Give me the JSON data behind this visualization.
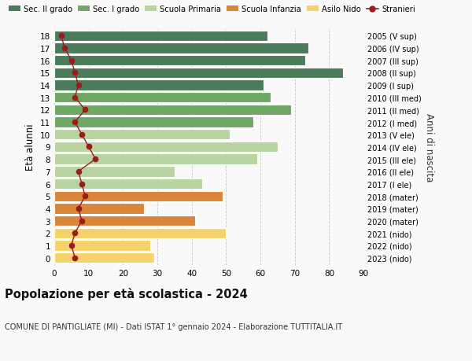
{
  "ages": [
    18,
    17,
    16,
    15,
    14,
    13,
    12,
    11,
    10,
    9,
    8,
    7,
    6,
    5,
    4,
    3,
    2,
    1,
    0
  ],
  "years": [
    "2005 (V sup)",
    "2006 (IV sup)",
    "2007 (III sup)",
    "2008 (II sup)",
    "2009 (I sup)",
    "2010 (III med)",
    "2011 (II med)",
    "2012 (I med)",
    "2013 (V ele)",
    "2014 (IV ele)",
    "2015 (III ele)",
    "2016 (II ele)",
    "2017 (I ele)",
    "2018 (mater)",
    "2019 (mater)",
    "2020 (mater)",
    "2021 (nido)",
    "2022 (nido)",
    "2023 (nido)"
  ],
  "bar_values": [
    62,
    74,
    73,
    84,
    61,
    63,
    69,
    58,
    51,
    65,
    59,
    35,
    43,
    49,
    26,
    41,
    50,
    28,
    29
  ],
  "bar_colors": [
    "#4a7c59",
    "#4a7c59",
    "#4a7c59",
    "#4a7c59",
    "#4a7c59",
    "#6fa865",
    "#6fa865",
    "#6fa865",
    "#b8d4a0",
    "#b8d4a0",
    "#b8d4a0",
    "#b8d4a0",
    "#b8d4a0",
    "#d9853a",
    "#d9853a",
    "#d9853a",
    "#f5d26b",
    "#f5d26b",
    "#f5d26b"
  ],
  "stranieri_values": [
    2,
    3,
    5,
    6,
    7,
    6,
    9,
    6,
    8,
    10,
    12,
    7,
    8,
    9,
    7,
    8,
    6,
    5,
    6
  ],
  "legend_labels": [
    "Sec. II grado",
    "Sec. I grado",
    "Scuola Primaria",
    "Scuola Infanzia",
    "Asilo Nido",
    "Stranieri"
  ],
  "legend_colors": [
    "#4a7c59",
    "#6fa865",
    "#b8d4a0",
    "#d9853a",
    "#f5d26b",
    "#9b1c1c"
  ],
  "ylabel": "Età alunni",
  "ylabel2": "Anni di nascita",
  "title": "Popolazione per età scolastica - 2024",
  "subtitle": "COMUNE DI PANTIGLIATE (MI) - Dati ISTAT 1° gennaio 2024 - Elaborazione TUTTITALIA.IT",
  "xlim": [
    0,
    90
  ],
  "background_color": "#f9f9f9",
  "grid_color": "#c8c8c8",
  "stranieri_color": "#9b1c1c",
  "bar_height": 0.85
}
